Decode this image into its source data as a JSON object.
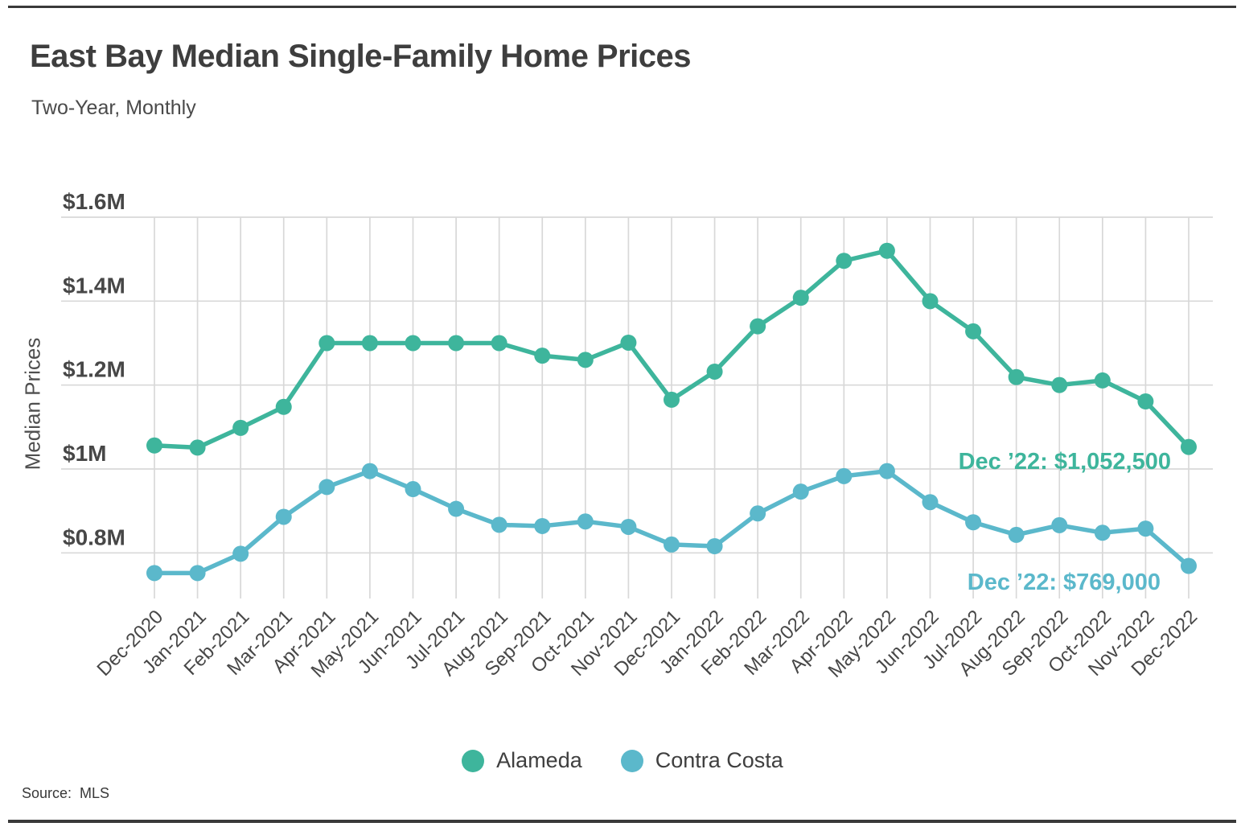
{
  "header": {
    "title": "East Bay Median Single-Family Home Prices",
    "subtitle": "Two-Year, Monthly"
  },
  "y_axis": {
    "label": "Median Prices"
  },
  "legend": {
    "items": [
      {
        "label": "Alameda"
      },
      {
        "label": "Contra Costa"
      }
    ]
  },
  "source": {
    "text": "Source:  MLS"
  },
  "colors": {
    "alameda": "#3eb59c",
    "contra_costa": "#5bb8cb",
    "grid": "#d8d8d8",
    "axis_text": "#474747",
    "rule": "#3a3a3a"
  },
  "chart_data": {
    "type": "line",
    "title": "East Bay Median Single-Family Home Prices",
    "subtitle": "Two-Year, Monthly",
    "xlabel": "",
    "ylabel": "Median Prices",
    "units": "millions of USD",
    "grid": true,
    "legend_position": "bottom",
    "ylim": [
      0.69,
      1.6
    ],
    "yticks": [
      0.8,
      1.0,
      1.2,
      1.4,
      1.6
    ],
    "ytick_labels": [
      "$0.8M",
      "$1M",
      "$1.2M",
      "$1.4M",
      "$1.6M"
    ],
    "x": [
      "Dec-2020",
      "Jan-2021",
      "Feb-2021",
      "Mar-2021",
      "Apr-2021",
      "May-2021",
      "Jun-2021",
      "Jul-2021",
      "Aug-2021",
      "Sep-2021",
      "Oct-2021",
      "Nov-2021",
      "Dec-2021",
      "Jan-2022",
      "Feb-2022",
      "Mar-2022",
      "Apr-2022",
      "May-2022",
      "Jun-2022",
      "Jul-2022",
      "Aug-2022",
      "Sep-2022",
      "Oct-2022",
      "Nov-2022",
      "Dec-2022"
    ],
    "series": [
      {
        "name": "Alameda",
        "color": "#3eb59c",
        "values": [
          1.056,
          1.051,
          1.098,
          1.148,
          1.3,
          1.3,
          1.3,
          1.3,
          1.3,
          1.27,
          1.26,
          1.301,
          1.165,
          1.232,
          1.34,
          1.408,
          1.496,
          1.52,
          1.4,
          1.328,
          1.219,
          1.2,
          1.211,
          1.161,
          1.0525
        ],
        "last_value_label": "Dec ’22: $1,052,500",
        "last_value_usd": "$1,052,500"
      },
      {
        "name": "Contra Costa",
        "color": "#5bb8cb",
        "values": [
          0.752,
          0.752,
          0.798,
          0.886,
          0.957,
          0.995,
          0.952,
          0.905,
          0.867,
          0.864,
          0.875,
          0.862,
          0.82,
          0.816,
          0.894,
          0.946,
          0.983,
          0.995,
          0.921,
          0.873,
          0.843,
          0.866,
          0.848,
          0.858,
          0.769
        ],
        "last_value_label": "Dec ’22: $769,000",
        "last_value_usd": "$769,000"
      }
    ],
    "annotations": [
      {
        "series": "Alameda",
        "text": "Dec ’22: $1,052,500"
      },
      {
        "series": "Contra Costa",
        "text": "Dec ’22: $769,000"
      }
    ]
  }
}
